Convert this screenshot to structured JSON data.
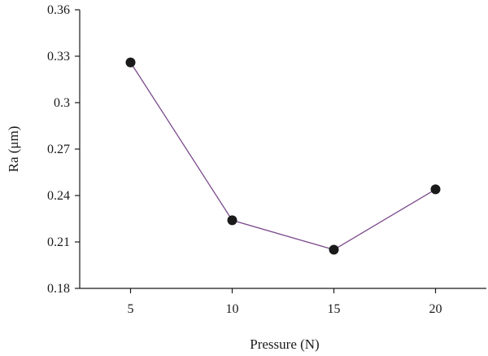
{
  "chart_data": {
    "type": "line",
    "title": "",
    "xlabel": "Pressure (N)",
    "ylabel": "Ra (μm)",
    "x": [
      5,
      10,
      15,
      20
    ],
    "series": [
      {
        "values": [
          0.326,
          0.224,
          0.205,
          0.244
        ]
      }
    ],
    "xlim": [
      2.5,
      22.5
    ],
    "ylim": [
      0.18,
      0.36
    ],
    "xticks": [
      "5",
      "10",
      "15",
      "20"
    ],
    "yticks": [
      "0.36",
      "0.33",
      "0.3",
      "0.27",
      "0.24",
      "0.21",
      "0.18"
    ],
    "grid": false,
    "line_color": "#7b4a8c",
    "marker_color": "#1a1a1a"
  }
}
